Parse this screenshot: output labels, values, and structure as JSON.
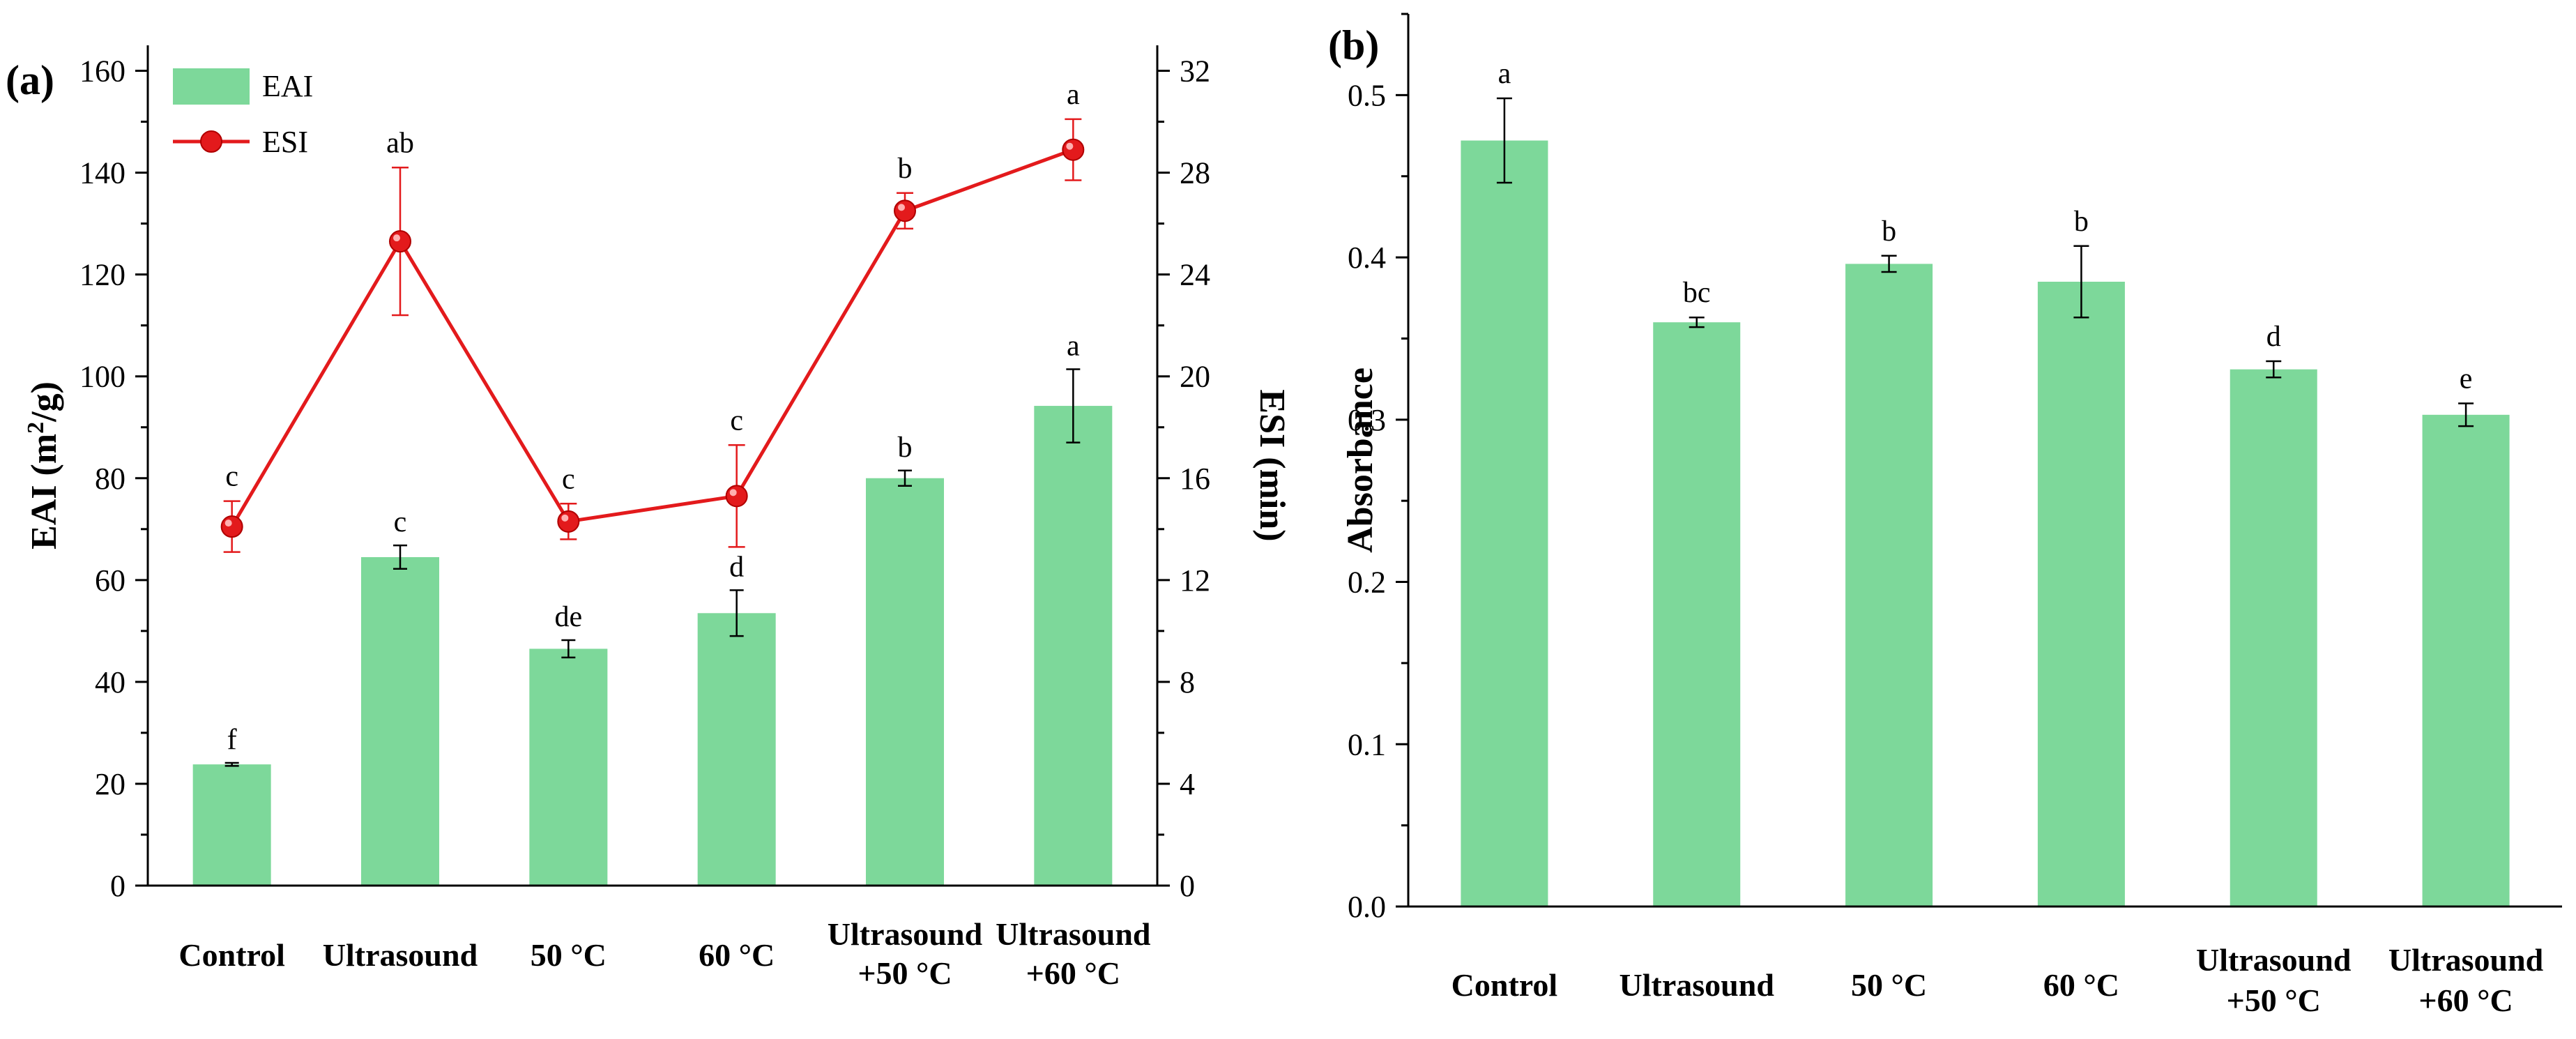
{
  "colors": {
    "bar": "#7dd89a",
    "line": "#e31a1c",
    "marker_fill": "#e31a1c"
  },
  "chart_data": [
    {
      "panel_label": "(a)",
      "type": "bar+line",
      "categories": [
        [
          "Control"
        ],
        [
          "Ultrasound"
        ],
        [
          "50 °C"
        ],
        [
          "60 °C"
        ],
        [
          "Ultrasound",
          "+50 °C"
        ],
        [
          "Ultrasound",
          "+60 °C"
        ]
      ],
      "ylabel_left": {
        "main": "EAI (m",
        "sup": "2",
        "tail": "/g)"
      },
      "ylabel_right": "ESI (min)",
      "ylim_left": [
        0,
        165
      ],
      "yticks_left": [
        0,
        20,
        40,
        60,
        80,
        100,
        120,
        140,
        160
      ],
      "ylim_right": [
        0,
        33
      ],
      "yticks_right": [
        0,
        4,
        8,
        12,
        16,
        20,
        24,
        28,
        32
      ],
      "legend": [
        "EAI",
        "ESI"
      ],
      "legend_position": "top-left",
      "series": [
        {
          "name": "EAI",
          "kind": "bar",
          "axis": "left",
          "values": [
            23.8,
            64.5,
            46.5,
            53.5,
            80,
            94.2
          ],
          "errors": [
            0.3,
            2.3,
            1.7,
            4.5,
            1.5,
            7.2
          ],
          "labels": [
            "f",
            "c",
            "de",
            "d",
            "b",
            "a"
          ]
        },
        {
          "name": "ESI",
          "kind": "line",
          "axis": "right",
          "values": [
            14.1,
            25.3,
            14.3,
            15.3,
            26.5,
            28.9
          ],
          "errors": [
            1.0,
            2.9,
            0.7,
            2.0,
            0.7,
            1.2
          ],
          "labels": [
            "c",
            "ab",
            "c",
            "c",
            "b",
            "a"
          ]
        }
      ]
    },
    {
      "panel_label": "(b)",
      "type": "bar",
      "categories": [
        [
          "Control"
        ],
        [
          "Ultrasound"
        ],
        [
          "50 °C"
        ],
        [
          "60 °C"
        ],
        [
          "Ultrasound",
          "+50 °C"
        ],
        [
          "Ultrasound",
          "+60 °C"
        ]
      ],
      "ylabel": "Absorbance",
      "ylim": [
        0,
        0.55
      ],
      "yticks": [
        "0.0",
        "0.1",
        "0.2",
        "0.3",
        "0.4",
        "0.5"
      ],
      "series": [
        {
          "name": "Absorbance",
          "kind": "bar",
          "values": [
            0.472,
            0.36,
            0.396,
            0.385,
            0.331,
            0.303
          ],
          "errors": [
            0.026,
            0.003,
            0.005,
            0.022,
            0.005,
            0.007
          ],
          "labels": [
            "a",
            "bc",
            "b",
            "b",
            "d",
            "e"
          ]
        }
      ]
    }
  ]
}
